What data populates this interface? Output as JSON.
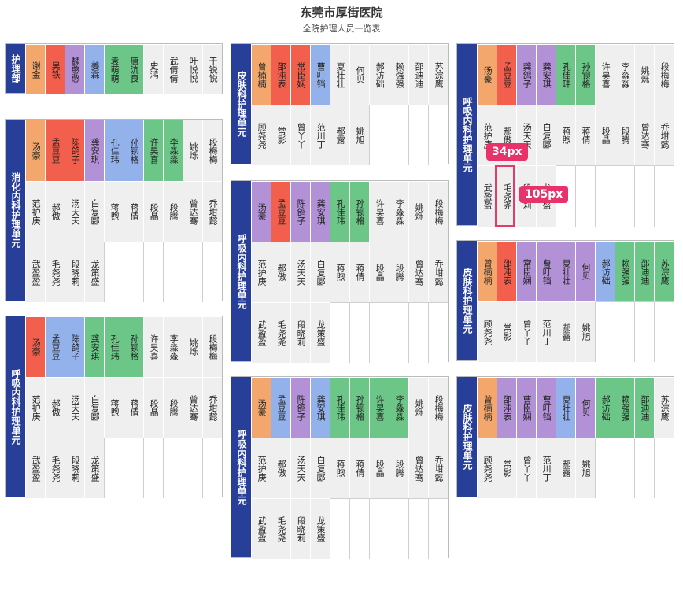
{
  "header": {
    "title": "东莞市厚街医院",
    "subtitle": "全院护理人员一览表"
  },
  "colors": {
    "unit_bg": "#283f9a",
    "cell_gray": "#efefef",
    "orange": "#f3a76c",
    "red": "#f25f4c",
    "purple": "#b391d6",
    "blue": "#93b1ea",
    "green": "#6cc687",
    "annotation": "#e8336a"
  },
  "panels": [
    {
      "unit": "护理部",
      "rows": [
        [
          [
            "谢金",
            "o"
          ],
          [
            "吴铁",
            "r"
          ],
          [
            "魏憨憨",
            "p"
          ],
          [
            "姜霖",
            "b"
          ],
          [
            "袁萌萌",
            "gr"
          ],
          [
            "唐沆良",
            "gr"
          ],
          [
            "史鸿",
            "g"
          ],
          [
            "武倩倩",
            "g"
          ],
          [
            "叶悦悦",
            "g"
          ],
          [
            "于锐锐",
            "g"
          ]
        ]
      ]
    },
    {
      "unit": "消化内科护理单元",
      "rows": [
        [
          [
            "汤豪",
            "o"
          ],
          [
            "孟豆豆",
            "r"
          ],
          [
            "陈鸽子",
            "r"
          ],
          [
            "龚安琪",
            "p"
          ],
          [
            "孔佳玮",
            "b"
          ],
          [
            "孙钡格",
            "b"
          ],
          [
            "许昊喜",
            "gr"
          ],
          [
            "李淼淼",
            "gr"
          ],
          [
            "姚烁",
            "g"
          ],
          [
            "段梅梅",
            "g"
          ]
        ],
        [
          [
            "范护庚",
            "g"
          ],
          [
            "郝傲",
            "g"
          ],
          [
            "汤天天",
            "g"
          ],
          [
            "白复郾",
            "g"
          ],
          [
            "蒋煦",
            "g"
          ],
          [
            "蒋倩",
            "g"
          ],
          [
            "段晶",
            "g"
          ],
          [
            "段腾",
            "g"
          ],
          [
            "曾达骞",
            "g"
          ],
          [
            "乔坩懿",
            "g"
          ]
        ],
        [
          [
            "武盈盈",
            "g"
          ],
          [
            "毛尧尧",
            "g"
          ],
          [
            "段晓莉",
            "g"
          ],
          [
            "龙策盛",
            "g"
          ],
          [
            "",
            "e"
          ],
          [
            "",
            "e"
          ],
          [
            "",
            "e"
          ],
          [
            "",
            "e"
          ],
          [
            "",
            "e"
          ],
          [
            "",
            "e"
          ]
        ]
      ]
    },
    {
      "unit": "呼吸内科护理单元",
      "rows": [
        [
          [
            "汤豪",
            "r"
          ],
          [
            "孟豆豆",
            "b"
          ],
          [
            "陈鸽子",
            "b"
          ],
          [
            "龚安琪",
            "gr"
          ],
          [
            "孔佳玮",
            "gr"
          ],
          [
            "孙钡格",
            "gr"
          ],
          [
            "许昊喜",
            "g"
          ],
          [
            "李淼淼",
            "g"
          ],
          [
            "姚烁",
            "g"
          ],
          [
            "段梅梅",
            "g"
          ]
        ],
        [
          [
            "范护庚",
            "g"
          ],
          [
            "郝傲",
            "g"
          ],
          [
            "汤天天",
            "g"
          ],
          [
            "白复郾",
            "g"
          ],
          [
            "蒋煦",
            "g"
          ],
          [
            "蒋倩",
            "g"
          ],
          [
            "段晶",
            "g"
          ],
          [
            "段腾",
            "g"
          ],
          [
            "曾达骞",
            "g"
          ],
          [
            "乔坩懿",
            "g"
          ]
        ],
        [
          [
            "武盈盈",
            "g"
          ],
          [
            "毛尧尧",
            "g"
          ],
          [
            "段晓莉",
            "g"
          ],
          [
            "龙策盛",
            "g"
          ],
          [
            "",
            "e"
          ],
          [
            "",
            "e"
          ],
          [
            "",
            "e"
          ],
          [
            "",
            "e"
          ],
          [
            "",
            "e"
          ],
          [
            "",
            "e"
          ]
        ]
      ]
    },
    {
      "unit": "皮肤科护理单元",
      "rows": [
        [
          [
            "曾楠楠",
            "o"
          ],
          [
            "邵沌表",
            "r"
          ],
          [
            "常臣娴",
            "r"
          ],
          [
            "曹叮铛",
            "b"
          ],
          [
            "夏壮壮",
            "g"
          ],
          [
            "何贝",
            "g"
          ],
          [
            "郝访础",
            "g"
          ],
          [
            "赖强强",
            "g"
          ],
          [
            "邵迪迪",
            "g"
          ],
          [
            "苏淙鹰",
            "g"
          ]
        ],
        [
          [
            "顾尧尧",
            "g"
          ],
          [
            "常影",
            "g"
          ],
          [
            "曾丫丫",
            "g"
          ],
          [
            "范川丁",
            "g"
          ],
          [
            "郝露",
            "g"
          ],
          [
            "姚旭",
            "g"
          ],
          [
            "",
            "e"
          ],
          [
            "",
            "e"
          ],
          [
            "",
            "e"
          ],
          [
            "",
            "e"
          ]
        ]
      ]
    },
    {
      "unit": "呼吸内科护理单元",
      "rows": [
        [
          [
            "汤豪",
            "p"
          ],
          [
            "孟豆豆",
            "r"
          ],
          [
            "陈鸽子",
            "p"
          ],
          [
            "龚安琪",
            "p"
          ],
          [
            "孔佳玮",
            "gr"
          ],
          [
            "孙钡格",
            "gr"
          ],
          [
            "许昊喜",
            "g"
          ],
          [
            "李淼淼",
            "g"
          ],
          [
            "姚烁",
            "g"
          ],
          [
            "段梅梅",
            "g"
          ]
        ],
        [
          [
            "范护庚",
            "g"
          ],
          [
            "郝傲",
            "g"
          ],
          [
            "汤天天",
            "g"
          ],
          [
            "白复郾",
            "g"
          ],
          [
            "蒋煦",
            "g"
          ],
          [
            "蒋倩",
            "g"
          ],
          [
            "段晶",
            "g"
          ],
          [
            "段腾",
            "g"
          ],
          [
            "曾达骞",
            "g"
          ],
          [
            "乔坩懿",
            "g"
          ]
        ],
        [
          [
            "武盈盈",
            "g"
          ],
          [
            "毛尧尧",
            "g"
          ],
          [
            "段晓莉",
            "g"
          ],
          [
            "龙策盛",
            "g"
          ],
          [
            "",
            "e"
          ],
          [
            "",
            "e"
          ],
          [
            "",
            "e"
          ],
          [
            "",
            "e"
          ],
          [
            "",
            "e"
          ],
          [
            "",
            "e"
          ]
        ]
      ]
    },
    {
      "unit": "呼吸内科护理单元",
      "rows": [
        [
          [
            "汤豪",
            "o"
          ],
          [
            "孟豆豆",
            "b"
          ],
          [
            "陈鸽子",
            "p"
          ],
          [
            "龚安琪",
            "b"
          ],
          [
            "孔佳玮",
            "gr"
          ],
          [
            "孙钡格",
            "gr"
          ],
          [
            "许昊喜",
            "gr"
          ],
          [
            "李淼淼",
            "gr"
          ],
          [
            "姚烁",
            "g"
          ],
          [
            "段梅梅",
            "g"
          ]
        ],
        [
          [
            "范护庚",
            "g"
          ],
          [
            "郝傲",
            "g"
          ],
          [
            "汤天天",
            "g"
          ],
          [
            "白复郾",
            "g"
          ],
          [
            "蒋煦",
            "g"
          ],
          [
            "蒋倩",
            "g"
          ],
          [
            "段晶",
            "g"
          ],
          [
            "段腾",
            "g"
          ],
          [
            "曾达骞",
            "g"
          ],
          [
            "乔坩懿",
            "g"
          ]
        ],
        [
          [
            "武盈盈",
            "g"
          ],
          [
            "毛尧尧",
            "g"
          ],
          [
            "段晓莉",
            "g"
          ],
          [
            "龙策盛",
            "g"
          ],
          [
            "",
            "e"
          ],
          [
            "",
            "e"
          ],
          [
            "",
            "e"
          ],
          [
            "",
            "e"
          ],
          [
            "",
            "e"
          ],
          [
            "",
            "e"
          ]
        ]
      ]
    },
    {
      "unit": "呼吸内科护理单元",
      "rows": [
        [
          [
            "汤豪",
            "o"
          ],
          [
            "孟豆豆",
            "r"
          ],
          [
            "龚鸽子",
            "p"
          ],
          [
            "龚安琪",
            "p"
          ],
          [
            "孔佳玮",
            "gr"
          ],
          [
            "孙钡格",
            "gr"
          ],
          [
            "许昊喜",
            "g"
          ],
          [
            "李淼淼",
            "g"
          ],
          [
            "姚烁",
            "g"
          ],
          [
            "段梅梅",
            "g"
          ]
        ],
        [
          [
            "范护庚",
            "g"
          ],
          [
            "郝傲",
            "g"
          ],
          [
            "汤天天",
            "g"
          ],
          [
            "白复郾",
            "g"
          ],
          [
            "蒋煦",
            "g"
          ],
          [
            "蒋倩",
            "g"
          ],
          [
            "段晶",
            "g"
          ],
          [
            "段腾",
            "g"
          ],
          [
            "曾达骞",
            "g"
          ],
          [
            "乔坩懿",
            "g"
          ]
        ],
        [
          [
            "武盈盈",
            "g"
          ],
          [
            "毛尧尧",
            "g"
          ],
          [
            "段晓莉",
            "g"
          ],
          [
            "龙策盛",
            "g"
          ],
          [
            "",
            "e"
          ],
          [
            "",
            "e"
          ],
          [
            "",
            "e"
          ],
          [
            "",
            "e"
          ],
          [
            "",
            "e"
          ],
          [
            "",
            "e"
          ]
        ]
      ]
    },
    {
      "unit": "皮肤科护理单元",
      "rows": [
        [
          [
            "曾楠楠",
            "o"
          ],
          [
            "邵沌表",
            "r"
          ],
          [
            "常臣娴",
            "p"
          ],
          [
            "曹叮铛",
            "p"
          ],
          [
            "夏壮壮",
            "p"
          ],
          [
            "何贝",
            "p"
          ],
          [
            "郝访础",
            "b"
          ],
          [
            "赖强强",
            "gr"
          ],
          [
            "邵迪迪",
            "gr"
          ],
          [
            "苏淙鹰",
            "gr"
          ]
        ],
        [
          [
            "顾尧尧",
            "g"
          ],
          [
            "常影",
            "g"
          ],
          [
            "曾丫丫",
            "g"
          ],
          [
            "范川丁",
            "g"
          ],
          [
            "郝露",
            "g"
          ],
          [
            "姚旭",
            "g"
          ],
          [
            "",
            "e"
          ],
          [
            "",
            "e"
          ],
          [
            "",
            "e"
          ],
          [
            "",
            "e"
          ]
        ]
      ]
    },
    {
      "unit": "皮肤科护理单元",
      "rows": [
        [
          [
            "曾楠楠",
            "o"
          ],
          [
            "邵沌表",
            "p"
          ],
          [
            "曹臣娴",
            "p"
          ],
          [
            "曹叮铛",
            "p"
          ],
          [
            "夏壮壮",
            "b"
          ],
          [
            "何贝",
            "p"
          ],
          [
            "郝访础",
            "gr"
          ],
          [
            "赖强强",
            "gr"
          ],
          [
            "邵迪迪",
            "gr"
          ],
          [
            "苏淙鹰",
            "g"
          ]
        ],
        [
          [
            "顾尧尧",
            "g"
          ],
          [
            "常影",
            "g"
          ],
          [
            "曾丫丫",
            "g"
          ],
          [
            "范川丁",
            "g"
          ],
          [
            "郝露",
            "g"
          ],
          [
            "姚旭",
            "g"
          ],
          [
            "",
            "e"
          ],
          [
            "",
            "e"
          ],
          [
            "",
            "e"
          ],
          [
            "",
            "e"
          ]
        ]
      ]
    }
  ],
  "annotations": {
    "width_label": "34px",
    "height_label": "105px"
  }
}
